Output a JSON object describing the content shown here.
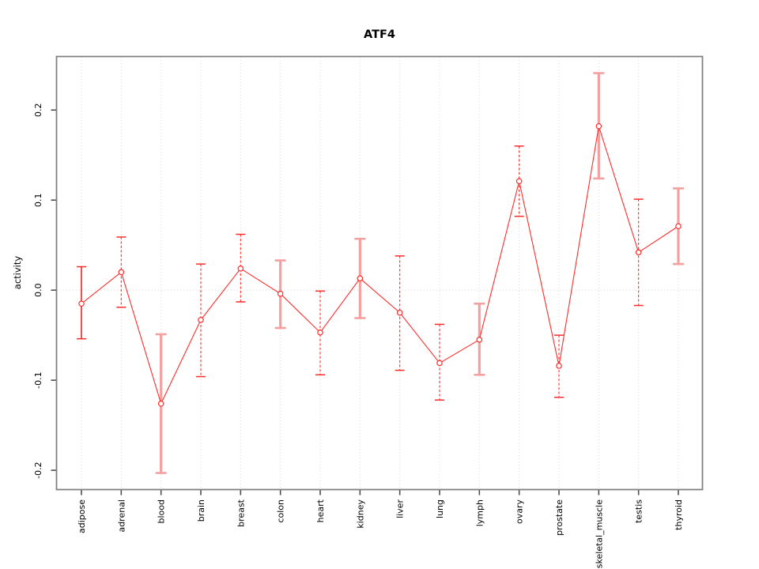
{
  "chart_data": {
    "type": "line",
    "subtype": "points-with-error-bars",
    "title": "ATF4",
    "xlabel": "",
    "ylabel": "activity",
    "categories": [
      "adipose",
      "adrenal",
      "blood",
      "brain",
      "breast",
      "colon",
      "heart",
      "kidney",
      "liver",
      "lung",
      "lymph",
      "ovary",
      "prostate",
      "skeletal_muscle",
      "testis",
      "thyroid"
    ],
    "series": [
      {
        "name": "activity",
        "values": [
          -0.015,
          0.02,
          -0.126,
          -0.033,
          0.024,
          -0.004,
          -0.047,
          0.013,
          -0.025,
          -0.081,
          -0.055,
          0.121,
          -0.084,
          0.182,
          0.042,
          0.071
        ],
        "upper": [
          0.026,
          0.059,
          -0.049,
          0.029,
          0.062,
          0.033,
          -0.001,
          0.057,
          0.038,
          -0.038,
          -0.015,
          0.16,
          -0.05,
          0.241,
          0.101,
          0.113
        ],
        "lower": [
          -0.054,
          -0.019,
          -0.203,
          -0.096,
          -0.013,
          -0.042,
          -0.094,
          -0.031,
          -0.089,
          -0.122,
          -0.094,
          0.082,
          -0.119,
          0.124,
          -0.017,
          0.029
        ],
        "bar_style": [
          "solid",
          "dashed",
          "heavy",
          "dashed",
          "dashed",
          "heavy",
          "dashed",
          "heavy",
          "dashed",
          "dashed",
          "heavy",
          "dashed",
          "dashed",
          "heavy",
          "dashed",
          "heavy"
        ]
      }
    ],
    "marker": "open-circle",
    "ylim": [
      -0.221,
      0.259
    ],
    "yticks": [
      -0.2,
      -0.1,
      0.0,
      0.1,
      0.2
    ],
    "ytick_labels": [
      "-0.2",
      "-0.1",
      "0.0",
      "0.1",
      "0.2"
    ],
    "grid": {
      "vertical": "dotted line at every category",
      "horizontal": "dotted line at y = 0",
      "on": true
    },
    "legend": "none",
    "colors": {
      "line": "#ff2b2b",
      "marker": "#ff2b2b",
      "heavy_bar": "#f5a0a0",
      "grid": "#d8d8d8",
      "frame": "#808080",
      "tick": "#4d4d4d",
      "text": "#000000",
      "background": "#ffffff"
    }
  }
}
